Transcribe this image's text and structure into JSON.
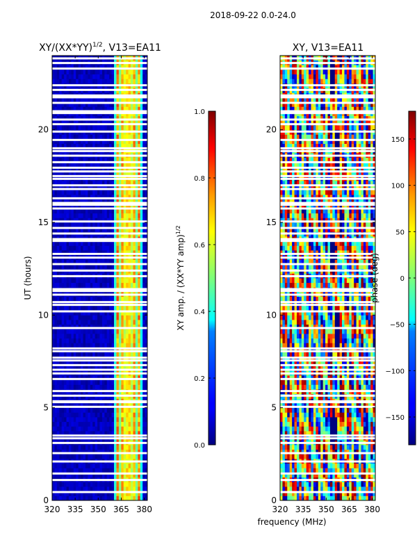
{
  "suptitle": "2018-09-22 0.0-24.0",
  "chart_data": [
    {
      "type": "heatmap",
      "title": "XY/(XX*YY)",
      "title_exponent": "1/2",
      "title_suffix": ", V13=EA11",
      "xlabel": "",
      "ylabel": "UT (hours)",
      "xlim": [
        320,
        382
      ],
      "ylim": [
        0,
        24
      ],
      "xticks": [
        "320",
        "335",
        "350",
        "365",
        "380"
      ],
      "yticks": [
        "0",
        "5",
        "10",
        "15",
        "20"
      ],
      "colormap": "jet",
      "colorbar": {
        "label": "XY amp. / (XX*YY amp)",
        "label_exponent": "1/2",
        "range": [
          0.0,
          1.0
        ],
        "ticks": [
          "0.0",
          "0.2",
          "0.4",
          "0.6",
          "0.8",
          "1.0"
        ]
      },
      "notes": "Low amplitude (about 0.05) below 361 MHz; bright vertical bands (about 0.4 to 0.9) between 361 and 378 MHz; horizontal white gaps mark flagged times."
    },
    {
      "type": "heatmap",
      "title": "XY, V13=EA11",
      "xlabel": "frequency (MHz)",
      "ylabel": "",
      "xlim": [
        320,
        382
      ],
      "ylim": [
        0,
        24
      ],
      "xticks": [
        "320",
        "335",
        "350",
        "365",
        "380"
      ],
      "yticks": [
        "0",
        "5",
        "10",
        "15",
        "20"
      ],
      "colormap": "jet",
      "colorbar": {
        "label": "phase (deg)",
        "range": [
          -180,
          180
        ],
        "ticks": [
          "-150",
          "-100",
          "-50",
          "0",
          "50",
          "100",
          "150"
        ]
      },
      "notes": "Phase varies strongly across frequency and time with vertical banding; horizontal white gaps mark flagged times."
    }
  ],
  "gaps_ut_hours": [
    0.45,
    1.1,
    1.45,
    2.1,
    2.55,
    3.1,
    3.35,
    3.5,
    5.05,
    5.3,
    5.35,
    5.65,
    5.9,
    6.55,
    6.85,
    7.05,
    7.3,
    7.55,
    7.7,
    8.05,
    8.2,
    9.3,
    10.2,
    10.55,
    10.7,
    11.1,
    11.3,
    11.4,
    12.1,
    12.4,
    12.75,
    13.1,
    13.3,
    14.0,
    14.1,
    14.4,
    14.7,
    15.05,
    15.75,
    15.95,
    16.05,
    16.3,
    16.8,
    17.0,
    17.35,
    17.5,
    17.75,
    17.95,
    18.25,
    18.6,
    18.85,
    19.0,
    19.45,
    19.9,
    20.3,
    20.55,
    20.9,
    21.0,
    21.45,
    21.75,
    21.85,
    22.15,
    22.4,
    23.3,
    23.6,
    23.85
  ]
}
